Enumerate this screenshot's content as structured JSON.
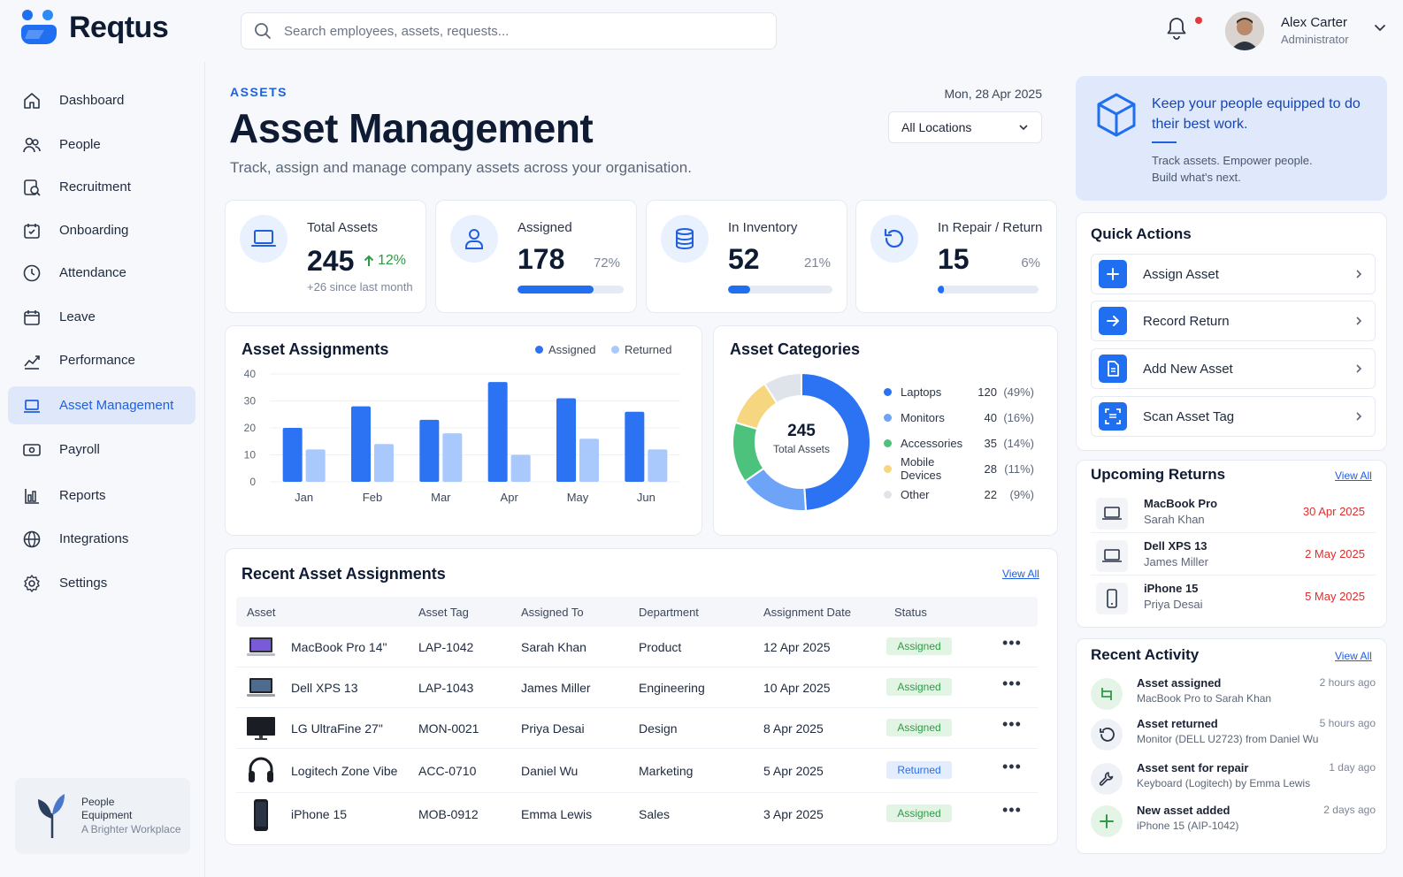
{
  "app": {
    "name": "Reqtus"
  },
  "search": {
    "placeholder": "Search employees, assets, requests..."
  },
  "user": {
    "name": "Alex Carter",
    "role": "Administrator"
  },
  "sidebar": {
    "items": [
      {
        "label": "Dashboard",
        "icon": "home-icon"
      },
      {
        "label": "People",
        "icon": "people-icon"
      },
      {
        "label": "Recruitment",
        "icon": "recruitment-icon"
      },
      {
        "label": "Onboarding",
        "icon": "onboarding-icon"
      },
      {
        "label": "Attendance",
        "icon": "clock-icon"
      },
      {
        "label": "Leave",
        "icon": "calendar-icon"
      },
      {
        "label": "Performance",
        "icon": "chart-trend-icon"
      },
      {
        "label": "Asset Management",
        "icon": "laptop-icon",
        "active": true
      },
      {
        "label": "Payroll",
        "icon": "payroll-icon"
      },
      {
        "label": "Reports",
        "icon": "reports-icon"
      },
      {
        "label": "Integrations",
        "icon": "globe-icon"
      },
      {
        "label": "Settings",
        "icon": "gear-icon"
      }
    ],
    "promo": {
      "line1": "People",
      "line2": "Equipment",
      "line3": "A Brighter Workplace"
    }
  },
  "header": {
    "eyebrow": "ASSETS",
    "title": "Asset Management",
    "subtitle": "Track, assign and manage company assets across your organisation.",
    "date": "Mon, 28 Apr 2025",
    "location": "All Locations"
  },
  "stats": [
    {
      "label": "Total Assets",
      "value": "245",
      "change": "12%",
      "note": "+26 since last month"
    },
    {
      "label": "Assigned",
      "value": "178",
      "pct": "72%",
      "fill": 0.72
    },
    {
      "label": "In Inventory",
      "value": "52",
      "pct": "21%",
      "fill": 0.21
    },
    {
      "label": "In Repair / Return",
      "value": "15",
      "pct": "6%",
      "fill": 0.06
    }
  ],
  "assignments_chart": {
    "title": "Asset Assignments",
    "legend": [
      "Assigned",
      "Returned"
    ]
  },
  "categories_chart": {
    "title": "Asset Categories",
    "center_value": "245",
    "center_label": "Total Assets"
  },
  "chart_data": [
    {
      "type": "bar",
      "title": "Asset Assignments",
      "categories": [
        "Jan",
        "Feb",
        "Mar",
        "Apr",
        "May",
        "Jun"
      ],
      "series": [
        {
          "name": "Assigned",
          "values": [
            20,
            28,
            23,
            37,
            31,
            26
          ]
        },
        {
          "name": "Returned",
          "values": [
            12,
            14,
            18,
            10,
            16,
            12
          ]
        }
      ],
      "ylim": [
        0,
        40
      ],
      "yticks": [
        0,
        10,
        20,
        30,
        40
      ],
      "colors": [
        "#2b73f2",
        "#a9c8fb"
      ],
      "legend": "top-right",
      "grid": true
    },
    {
      "type": "pie",
      "title": "Asset Categories",
      "labels": [
        "Laptops",
        "Monitors",
        "Accessories",
        "Mobile Devices",
        "Other"
      ],
      "values": [
        120,
        40,
        35,
        28,
        22
      ],
      "percent_labels": [
        "(49%)",
        "(16%)",
        "(14%)",
        "(11%)",
        "(9%)"
      ],
      "colors": [
        "#2b73f2",
        "#6ea4f7",
        "#4cc27c",
        "#f7d680",
        "#dfe3ea"
      ],
      "donut": true,
      "legend": "right"
    }
  ],
  "recent": {
    "title": "Recent Asset Assignments",
    "view_all": "View All",
    "columns": [
      "Asset",
      "Asset Tag",
      "Assigned To",
      "Department",
      "Assignment Date",
      "Status"
    ],
    "rows": [
      {
        "asset": "MacBook Pro 14\"",
        "tag": "LAP-1042",
        "to": "Sarah Khan",
        "dept": "Product",
        "date": "12 Apr 2025",
        "status": "Assigned",
        "thumb": "laptop-thumbnail"
      },
      {
        "asset": "Dell XPS 13",
        "tag": "LAP-1043",
        "to": "James Miller",
        "dept": "Engineering",
        "date": "10 Apr 2025",
        "status": "Assigned",
        "thumb": "laptop-thumbnail"
      },
      {
        "asset": "LG UltraFine 27\"",
        "tag": "MON-0021",
        "to": "Priya Desai",
        "dept": "Design",
        "date": "8 Apr 2025",
        "status": "Assigned",
        "thumb": "monitor-thumbnail"
      },
      {
        "asset": "Logitech Zone Vibe",
        "tag": "ACC-0710",
        "to": "Daniel Wu",
        "dept": "Marketing",
        "date": "5 Apr 2025",
        "status": "Returned",
        "thumb": "headphones-thumbnail"
      },
      {
        "asset": "iPhone 15",
        "tag": "MOB-0912",
        "to": "Emma Lewis",
        "dept": "Sales",
        "date": "3 Apr 2025",
        "status": "Assigned",
        "thumb": "phone-thumbnail"
      }
    ]
  },
  "promo": {
    "heading": "Keep your people equipped to do their best work.",
    "body1": "Track assets. Empower people.",
    "body2": "Build what's next."
  },
  "quick_actions": {
    "title": "Quick Actions",
    "items": [
      {
        "label": "Assign Asset",
        "icon": "plus-icon"
      },
      {
        "label": "Record Return",
        "icon": "arrow-right-icon"
      },
      {
        "label": "Add New Asset",
        "icon": "document-icon"
      },
      {
        "label": "Scan Asset Tag",
        "icon": "scan-icon"
      }
    ]
  },
  "upcoming_returns": {
    "title": "Upcoming Returns",
    "view_all": "View All",
    "items": [
      {
        "name": "MacBook Pro",
        "user": "Sarah Khan",
        "date": "30 Apr 2025",
        "icon": "laptop-icon"
      },
      {
        "name": "Dell XPS 13",
        "user": "James Miller",
        "date": "2 May 2025",
        "icon": "laptop-icon"
      },
      {
        "name": "iPhone 15",
        "user": "Priya Desai",
        "date": "5 May 2025",
        "icon": "phone-icon"
      }
    ]
  },
  "recent_activity": {
    "title": "Recent Activity",
    "view_all": "View All",
    "items": [
      {
        "title": "Asset assigned",
        "desc": "MacBook Pro to Sarah Khan",
        "time": "2 hours ago",
        "icon": "assign-icon"
      },
      {
        "title": "Asset returned",
        "desc": "Monitor (DELL U2723) from Daniel Wu",
        "time": "5 hours ago",
        "icon": "return-icon"
      },
      {
        "title": "Asset sent for repair",
        "desc": "Keyboard (Logitech) by Emma Lewis",
        "time": "1 day ago",
        "icon": "wrench-icon"
      },
      {
        "title": "New asset added",
        "desc": "iPhone 15 (AIP-1042)",
        "time": "2 days ago",
        "icon": "plus-icon"
      }
    ]
  }
}
